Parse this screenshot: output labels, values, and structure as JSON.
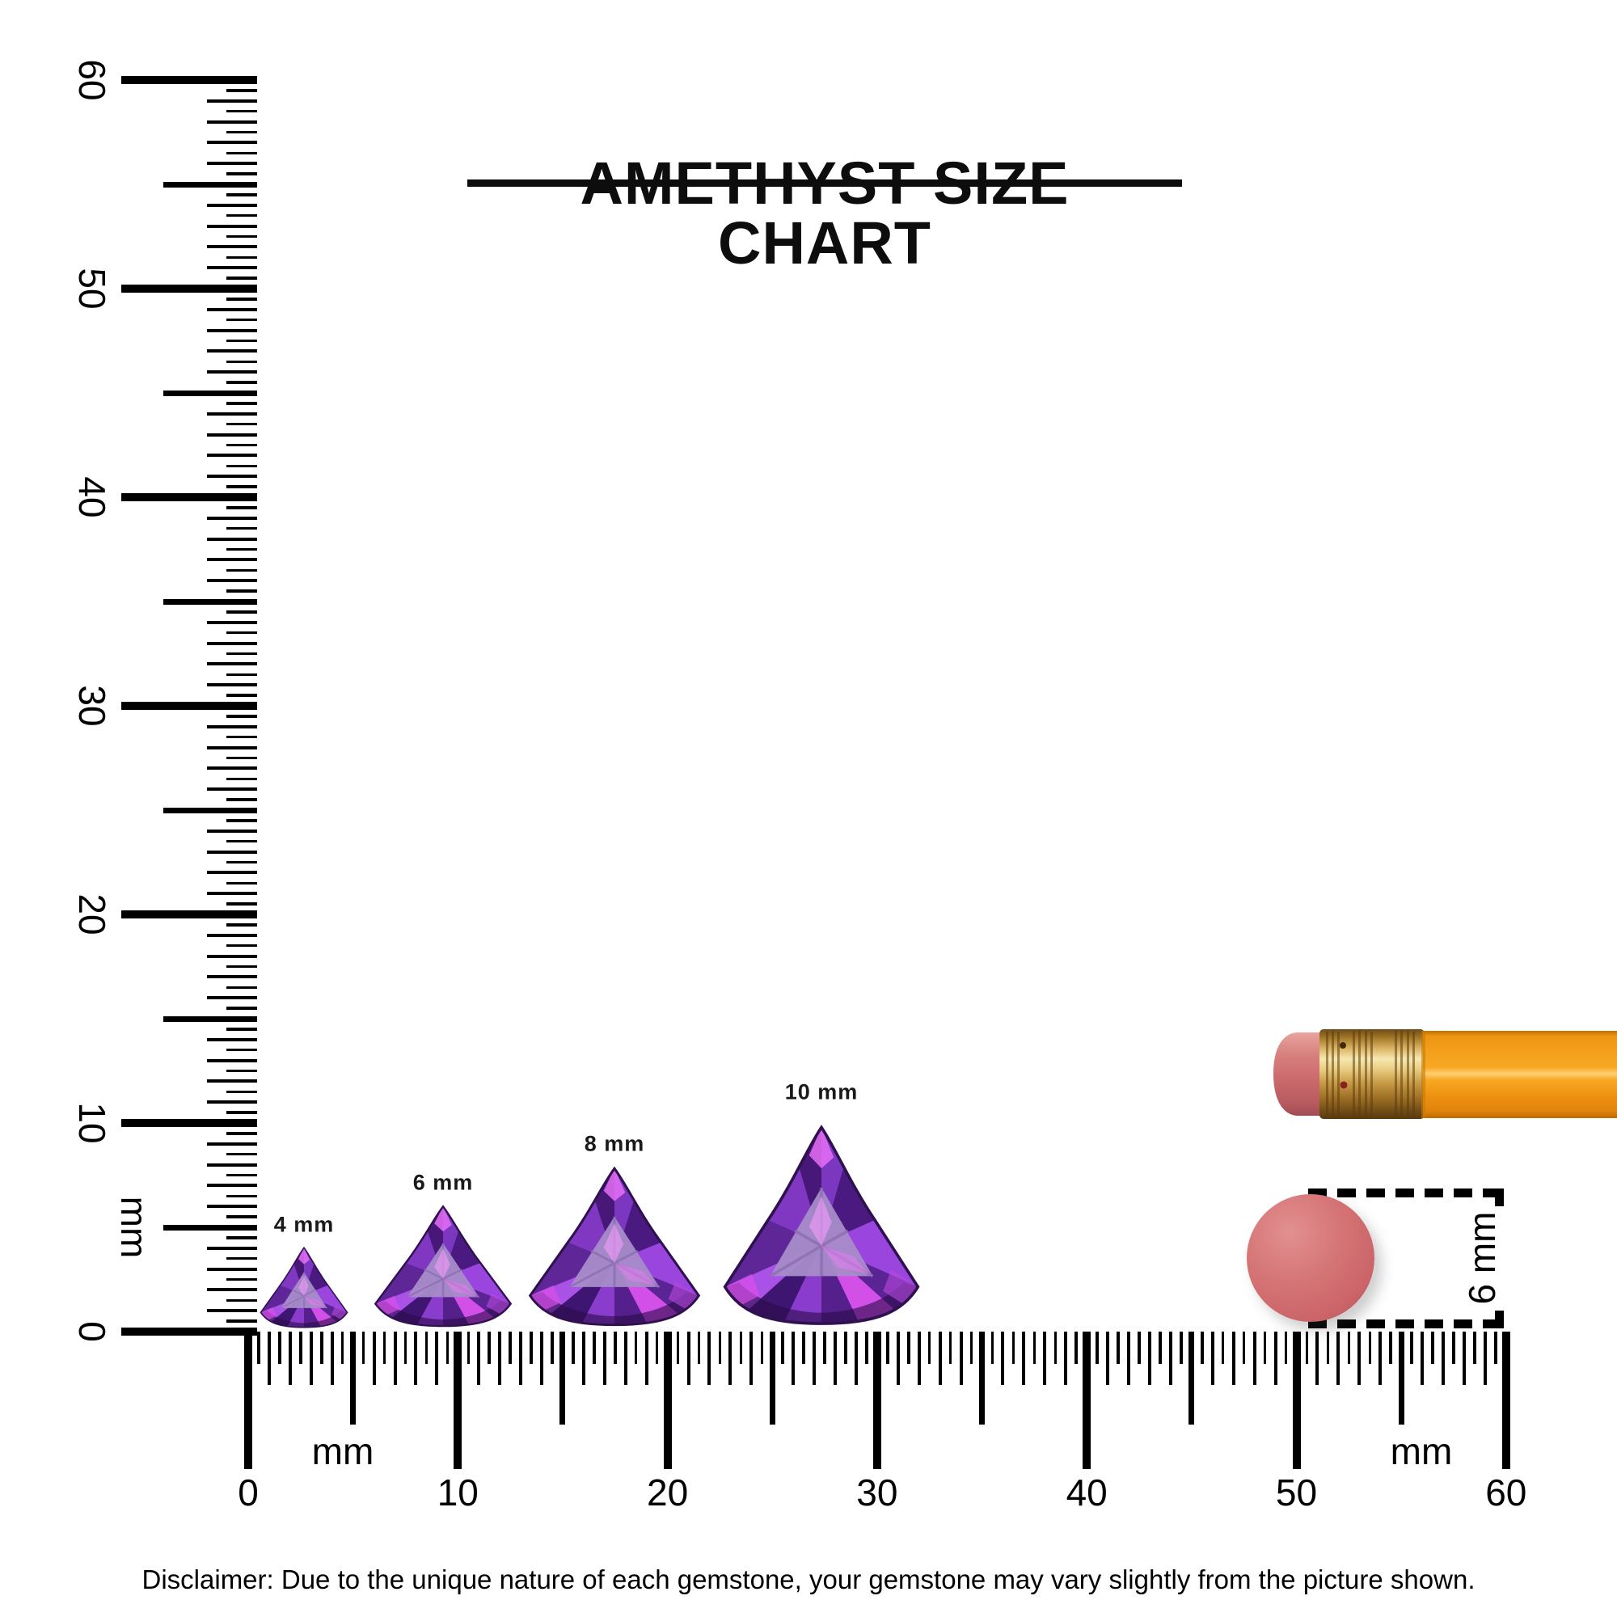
{
  "title": {
    "text": "AMETHYST SIZE CHART"
  },
  "rulers": {
    "unit": "mm",
    "range_mm": [
      0,
      60
    ],
    "tick_step_mm": 0.5,
    "vertical": {
      "labels": [
        "60",
        "50",
        "40",
        "30",
        "20",
        "10",
        "0"
      ]
    },
    "horizontal": {
      "labels": [
        "0",
        "10",
        "20",
        "30",
        "40",
        "50",
        "60"
      ]
    }
  },
  "gems": [
    {
      "label": "4 mm",
      "size_mm": 4
    },
    {
      "label": "6 mm",
      "size_mm": 6
    },
    {
      "label": "8 mm",
      "size_mm": 8
    },
    {
      "label": "10 mm",
      "size_mm": 10
    }
  ],
  "eraser_dimension": {
    "label": "6 mm",
    "diameter_mm": 6
  },
  "disclaimer": {
    "text": "Disclaimer: Due to the unique nature of each gemstone, your gemstone may vary slightly from the picture shown."
  },
  "colors": {
    "tick": "#000000",
    "title_text": "#0d0d0d",
    "gem_purple": "#8a3fd0",
    "gem_dark": "#3c1458",
    "gem_table": "#a28ac2",
    "gem_magenta": "#d24fe8",
    "disc_coral": "#d06a6c",
    "pencil_orange": "#f5a01c",
    "pencil_eraser_pink": "#cc6a6e",
    "pencil_ferrule_gold": "#d9b468"
  }
}
